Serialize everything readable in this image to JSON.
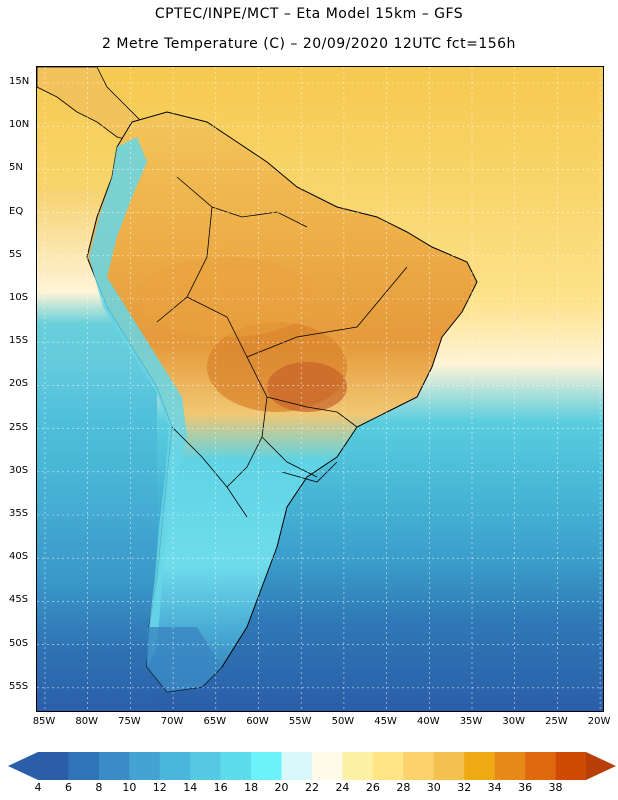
{
  "header": {
    "title_line1": "CPTEC/INPE/MCT –  Eta Model 15km – GFS",
    "title_line2": "2 Metre Temperature (C) – 20/09/2020 12UTC fct=156h"
  },
  "map": {
    "lat_labels": [
      "15N",
      "10N",
      "5N",
      "EQ",
      "5S",
      "10S",
      "15S",
      "20S",
      "25S",
      "30S",
      "35S",
      "40S",
      "45S",
      "50S",
      "55S"
    ],
    "lon_labels": [
      "85W",
      "80W",
      "75W",
      "70W",
      "65W",
      "60W",
      "55W",
      "50W",
      "45W",
      "40W",
      "35W",
      "30W",
      "25W",
      "20W"
    ],
    "colors": {
      "ocean_north": "#f7cf5e",
      "ocean_warm": "#fde792",
      "land_hot": "#e8a23a",
      "land_hottest": "#c8622a",
      "ocean_mid": "#4fc8dc",
      "ocean_cool": "#3ba6cf",
      "ocean_cold": "#2d6db0",
      "andes": "#6fd8ea",
      "border": "#000000",
      "grid": "#ffffff"
    }
  },
  "legend": {
    "labels": [
      "4",
      "6",
      "8",
      "10",
      "12",
      "14",
      "16",
      "18",
      "20",
      "22",
      "24",
      "26",
      "28",
      "30",
      "32",
      "34",
      "36",
      "38"
    ],
    "colors": [
      "#2a5ea8",
      "#2f74b6",
      "#3a8cc6",
      "#44a3d2",
      "#4bb6dc",
      "#55c9e4",
      "#5fdcec",
      "#6cf2fb",
      "#d8f8fb",
      "#fffbe8",
      "#fff1a4",
      "#ffe586",
      "#fbd26b",
      "#f4c04f",
      "#efa913",
      "#e88a1a",
      "#e06910",
      "#cf4a04"
    ],
    "low_arrow_color": "#2b5ea8",
    "high_arrow_color": "#b84008"
  }
}
